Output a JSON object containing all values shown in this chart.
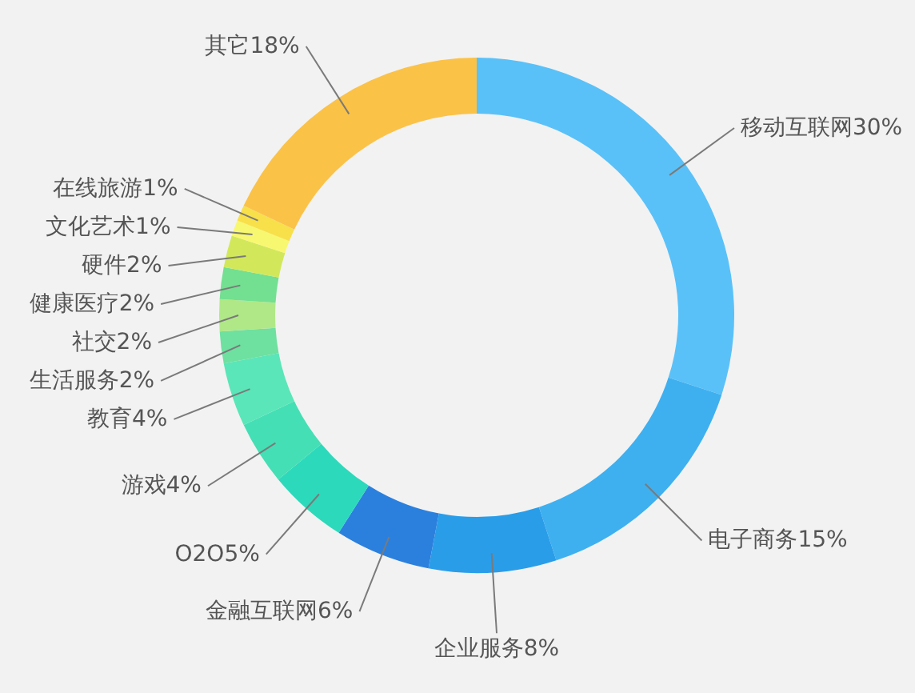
{
  "chart_data": {
    "type": "donut",
    "categories": [
      "移动互联网",
      "电子商务",
      "企业服务",
      "金融互联网",
      "O2O",
      "游戏",
      "教育",
      "生活服务",
      "社交",
      "健康医疗",
      "硬件",
      "文化艺术",
      "在线旅游",
      "其它"
    ],
    "values": [
      30,
      15,
      8,
      6,
      5,
      4,
      4,
      2,
      2,
      2,
      2,
      1,
      1,
      18
    ],
    "value_labels": [
      "30%",
      "15%",
      "8%",
      "6%",
      "5%",
      "4%",
      "4%",
      "2%",
      "2%",
      "2%",
      "2%",
      "1%",
      "1%",
      "18%"
    ],
    "colors": [
      "#5ac1f8",
      "#3eb0f0",
      "#2a9de9",
      "#2b80de",
      "#2dd9bb",
      "#45dfb5",
      "#5ae6b8",
      "#6ee0a0",
      "#b0e888",
      "#72e090",
      "#d2e85a",
      "#f8f870",
      "#f8e04a",
      "#fbc248"
    ]
  }
}
